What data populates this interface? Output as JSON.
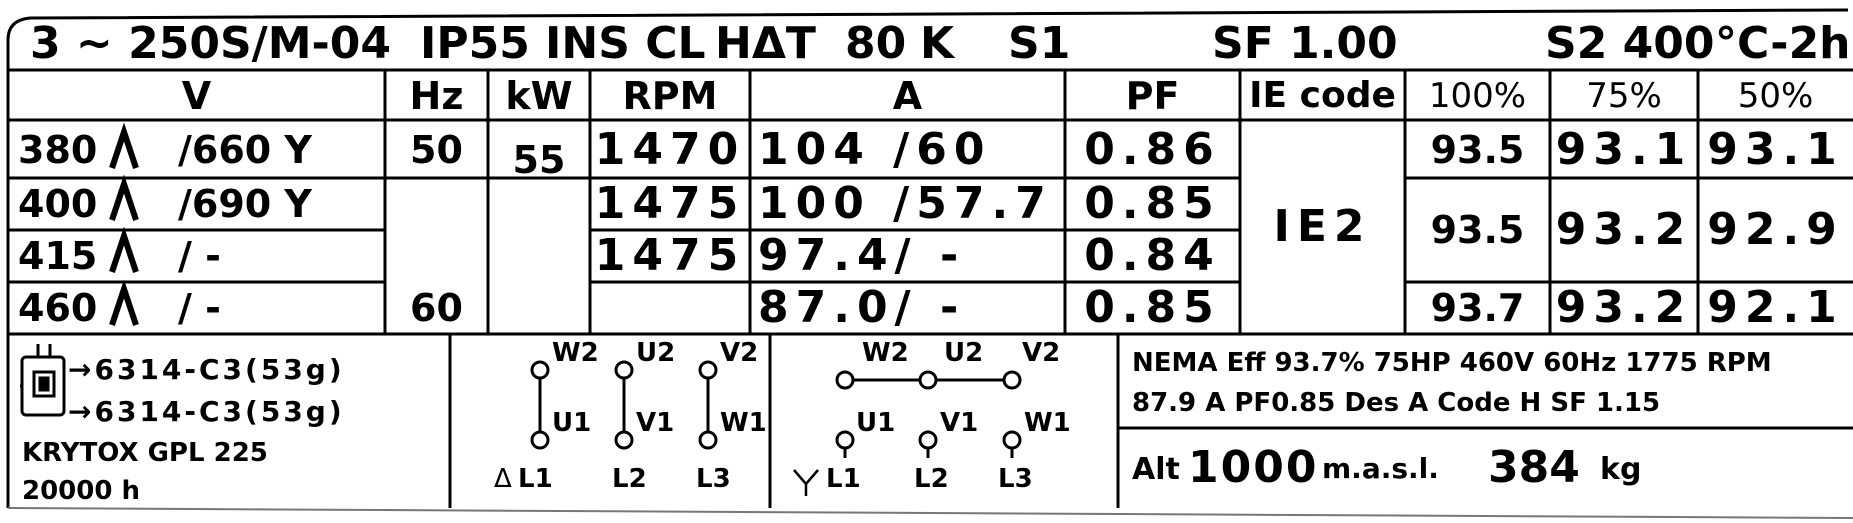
{
  "header": {
    "model": "3 ~ 250S/M-04",
    "ip": "IP55",
    "ins": "INS CL",
    "hdt": "HΔT",
    "dt_value": "80",
    "dt_unit": "K",
    "duty": "S1",
    "sf": "SF 1.00",
    "s2": "S2  400",
    "s2_unit": "°C-2h"
  },
  "columns": {
    "v": "V",
    "hz": "Hz",
    "kw": "kW",
    "rpm": "RPM",
    "a": "A",
    "pf": "PF",
    "ie": "IE  code",
    "e100": "100%",
    "e75": "75%",
    "e50": "50%"
  },
  "rows": [
    {
      "v": "380",
      "v2": "/660 Y",
      "hz": "50",
      "kw": "55",
      "rpm": "1470",
      "a": "104 /60",
      "pf": "0.86",
      "e100": "93.5",
      "e75": "93.1",
      "e50": "93.1"
    },
    {
      "v": "400",
      "v2": "/690  Y",
      "rpm": "1475",
      "a": "100 /57.7",
      "pf": "0.85"
    },
    {
      "v": "415",
      "v2": "/ -",
      "rpm": "1475",
      "a": "97.4/  -",
      "pf": "0.84"
    },
    {
      "v": "460",
      "v2": "/  -",
      "hz": "60",
      "a": "87.0/  -",
      "pf": "0.85",
      "e100": "93.7",
      "e75": "93.2",
      "e50": "92.1"
    }
  ],
  "merged": {
    "ie_value": "IE2",
    "e100_mid": "93.5",
    "e75_mid": "93.2",
    "e50_mid": "92.9"
  },
  "bottom": {
    "bearing1": "→6314-C3(53g)",
    "bearing2": "→6314-C3(53g)",
    "grease": "KRYTOX GPL 225",
    "hours": "20000 h",
    "delta_terms": {
      "w2": "W2",
      "u2": "U2",
      "v2": "V2",
      "u1": "U1",
      "v1": "V1",
      "w1": "W1",
      "l1": "L1",
      "l2": "L2",
      "l3": "L3",
      "symbol": "Δ"
    },
    "star_terms": {
      "w2": "W2",
      "u2": "U2",
      "v2": "V2",
      "u1": "U1",
      "v1": "V1",
      "w1": "W1",
      "l1": "L1",
      "l2": "L2",
      "l3": "L3",
      "symbol": "Y"
    },
    "nema1": "NEMA Eff 93.7%  75HP 460V  60Hz  1775 RPM",
    "nema2": "87.9 A  PF0.85  Des A    Code H     SF 1.15",
    "alt_label": "Alt",
    "alt_value": "1000",
    "alt_unit": "m.a.s.l.",
    "weight_value": "384",
    "weight_unit": "kg"
  }
}
